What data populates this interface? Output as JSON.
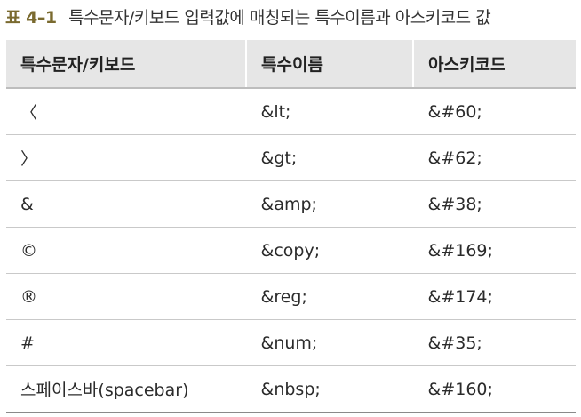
{
  "caption": {
    "label": "표 4–1",
    "title": "특수문자/키보드 입력값에 매칭되는 특수이름과 아스키코드 값"
  },
  "table": {
    "headers": [
      "특수문자/키보드",
      "특수이름",
      "아스키코드"
    ],
    "rows": [
      [
        "〈",
        "&lt;",
        "&#60;"
      ],
      [
        "〉",
        "&gt;",
        "&#62;"
      ],
      [
        "&",
        "&amp;",
        "&#38;"
      ],
      [
        "©",
        "&copy;",
        "&#169;"
      ],
      [
        "®",
        "&reg;",
        "&#174;"
      ],
      [
        "#",
        "&num;",
        "&#35;"
      ],
      [
        "스페이스바(spacebar)",
        "&nbsp;",
        "&#160;"
      ]
    ]
  }
}
